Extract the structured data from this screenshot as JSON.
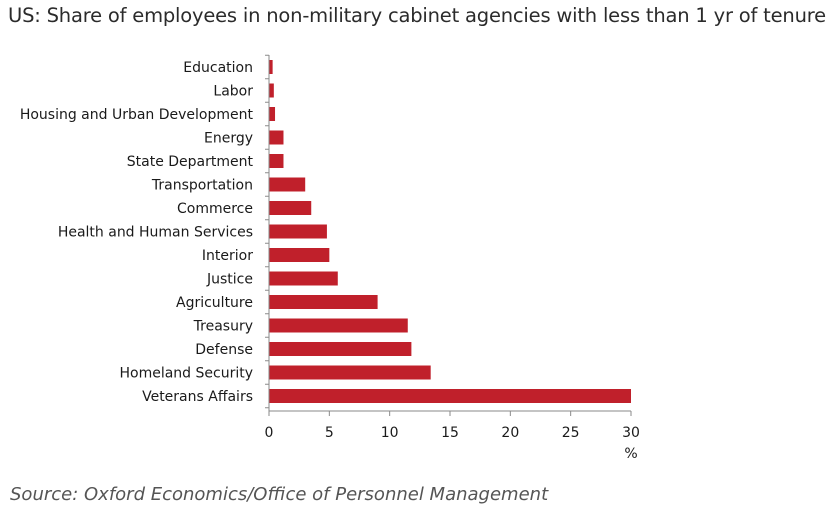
{
  "chart_data": {
    "type": "bar",
    "orientation": "horizontal",
    "title": "US: Share of employees in non-military cabinet agencies with less than 1 yr of tenure",
    "categories": [
      "Education",
      "Labor",
      "Housing and Urban Development",
      "Energy",
      "State Department",
      "Transportation",
      "Commerce",
      "Health and Human Services",
      "Interior",
      "Justice",
      "Agriculture",
      "Treasury",
      "Defense",
      "Homeland Security",
      "Veterans Affairs"
    ],
    "values": [
      0.3,
      0.4,
      0.5,
      1.2,
      1.2,
      3.0,
      3.5,
      4.8,
      5.0,
      5.7,
      9.0,
      11.5,
      11.8,
      13.4,
      30.0
    ],
    "xlabel": "%",
    "ylabel": "",
    "xlim": [
      0,
      30
    ],
    "xticks": [
      0,
      5,
      10,
      15,
      20,
      25,
      30
    ],
    "bar_color": "#c0202b",
    "grid": false,
    "source": "Source: Oxford Economics/Office of Personnel Management"
  }
}
